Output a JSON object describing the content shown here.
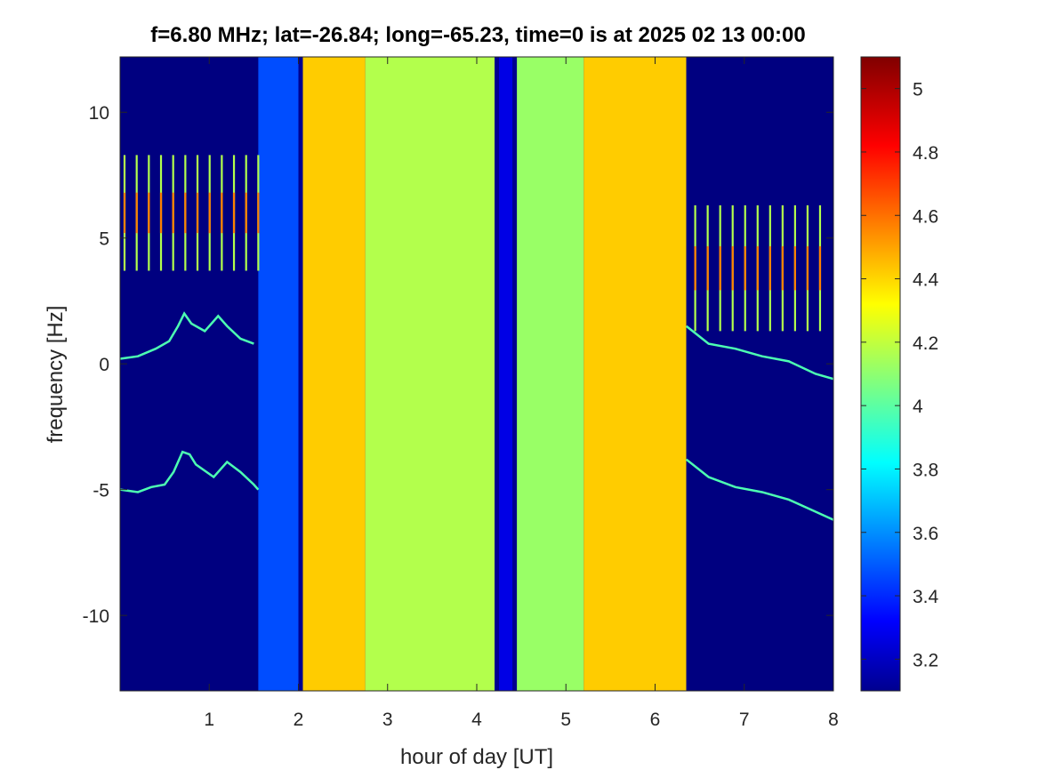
{
  "chart_data": {
    "type": "heatmap",
    "title": "f=6.80 MHz;  lat=-26.84; long=-65.23, time=0 is at 2025 02 13 00:00",
    "xlabel": "hour of day [UT]",
    "ylabel": "frequency [Hz]",
    "xlim": [
      0,
      8
    ],
    "ylim": [
      -13.0,
      12.2
    ],
    "xticks": [
      1,
      2,
      3,
      4,
      5,
      6,
      7,
      8
    ],
    "xtick_labels": [
      "1",
      "2",
      "3",
      "4",
      "5",
      "6",
      "7",
      "8"
    ],
    "yticks": [
      10,
      5,
      0,
      -5,
      -10
    ],
    "ytick_labels": [
      "10",
      "5",
      "0",
      "-5",
      "-10"
    ],
    "colormap": "jet",
    "clim": [
      3.1,
      5.1
    ],
    "colorbar": {
      "ticks": [
        5,
        4.8,
        4.6,
        4.4,
        4.2,
        4,
        3.8,
        3.6,
        3.4,
        3.2
      ],
      "tick_labels": [
        "5",
        "4.8",
        "4.6",
        "4.4",
        "4.2",
        "4",
        "3.8",
        "3.6",
        "3.4",
        "3.2"
      ],
      "placement": "right"
    },
    "regions": [
      {
        "x": [
          0.0,
          1.55
        ],
        "level": 3.1
      },
      {
        "x": [
          1.55,
          2.0
        ],
        "level": 3.5
      },
      {
        "x": [
          2.05,
          2.75
        ],
        "level": 4.45
      },
      {
        "x": [
          2.75,
          4.2
        ],
        "level": 4.2
      },
      {
        "x": [
          4.25,
          4.4
        ],
        "level": 3.3
      },
      {
        "x": [
          4.45,
          5.2
        ],
        "level": 4.15
      },
      {
        "x": [
          5.2,
          6.35
        ],
        "level": 4.45
      },
      {
        "x": [
          6.35,
          8.0
        ],
        "level": 3.1
      }
    ],
    "traces": [
      {
        "x": [
          0.0,
          0.2,
          0.4,
          0.55,
          0.65,
          0.72,
          0.8,
          0.95,
          1.1,
          1.2,
          1.35,
          1.5
        ],
        "y": [
          0.2,
          0.3,
          0.6,
          0.9,
          1.5,
          2.0,
          1.6,
          1.3,
          1.9,
          1.5,
          1.0,
          0.8
        ]
      },
      {
        "x": [
          0.0,
          0.2,
          0.35,
          0.5,
          0.6,
          0.7,
          0.78,
          0.85,
          1.05,
          1.2,
          1.35,
          1.5,
          1.55
        ],
        "y": [
          -5.0,
          -5.1,
          -4.9,
          -4.8,
          -4.3,
          -3.5,
          -3.6,
          -4.0,
          -4.5,
          -3.9,
          -4.3,
          -4.8,
          -5.0
        ]
      },
      {
        "x": [
          6.35,
          6.6,
          6.9,
          7.2,
          7.5,
          7.8,
          8.0
        ],
        "y": [
          1.5,
          0.8,
          0.6,
          0.3,
          0.1,
          -0.4,
          -0.6
        ]
      },
      {
        "x": [
          6.35,
          6.6,
          6.9,
          7.2,
          7.5,
          7.75,
          8.0
        ],
        "y": [
          -3.8,
          -4.5,
          -4.9,
          -5.1,
          -5.4,
          -5.8,
          -6.2
        ]
      }
    ],
    "stripes": [
      {
        "x_range": [
          0.05,
          1.55
        ],
        "count": 12,
        "y_center": 6.0,
        "y_half": 2.3
      },
      {
        "x_range": [
          6.45,
          7.85
        ],
        "count": 11,
        "y_center": 3.8,
        "y_half": 2.5
      }
    ]
  }
}
